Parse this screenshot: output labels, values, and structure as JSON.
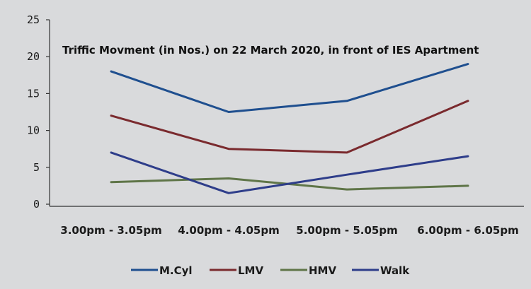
{
  "chart_data": {
    "type": "line",
    "title": "Triffic  Movment (in Nos.) on 22 March 2020, in front of IES Apartment",
    "categories": [
      "3.00pm - 3.05pm",
      "4.00pm - 4.05pm",
      "5.00pm - 5.05pm",
      "6.00pm - 6.05pm"
    ],
    "ylim": [
      0,
      25
    ],
    "yticks": [
      0,
      5,
      10,
      15,
      20,
      25
    ],
    "legend_position": "bottom",
    "grid": false,
    "series": [
      {
        "name": "M.Cyl",
        "color": "#1f4f8f",
        "values": [
          18,
          12.5,
          14,
          19
        ]
      },
      {
        "name": "LMV",
        "color": "#7a2a2e",
        "values": [
          12,
          7.5,
          7,
          14
        ]
      },
      {
        "name": "HMV",
        "color": "#5f7548",
        "values": [
          3,
          3.5,
          2,
          2.5
        ]
      },
      {
        "name": "Walk",
        "color": "#2e3d8a",
        "values": [
          7,
          1.5,
          4,
          6.5
        ]
      }
    ]
  }
}
